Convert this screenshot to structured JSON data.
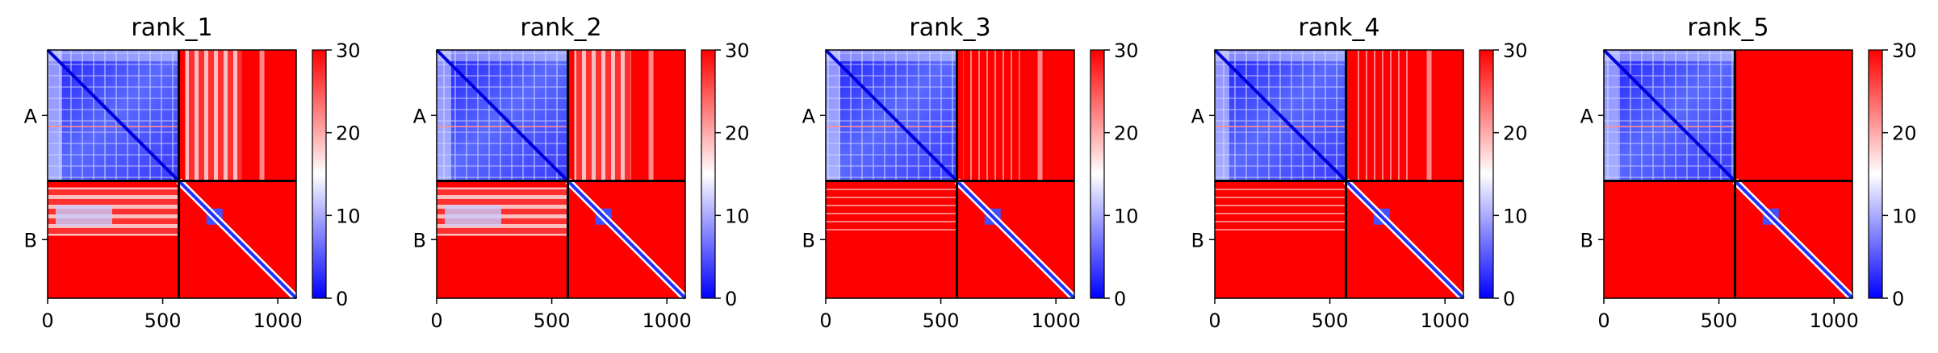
{
  "chart_data": [
    {
      "type": "heatmap",
      "title": "rank_1",
      "row_labels": [
        "A",
        "B"
      ],
      "x_ticks": [
        0,
        500,
        1000
      ],
      "x_range": [
        0,
        1080
      ],
      "chain_boundary": 570,
      "colorbar": {
        "range": [
          0,
          30
        ],
        "ticks": [
          0,
          10,
          20,
          30
        ],
        "colors": [
          "#0000ff",
          "#ffffff",
          "#ff0000"
        ]
      },
      "blocks": {
        "AA": "blue-mid",
        "AB": "red-whitish",
        "BA": "red-whitish",
        "BB": "red-diag"
      }
    },
    {
      "type": "heatmap",
      "title": "rank_2",
      "row_labels": [
        "A",
        "B"
      ],
      "x_ticks": [
        0,
        500,
        1000
      ],
      "x_range": [
        0,
        1080
      ],
      "chain_boundary": 570,
      "colorbar": {
        "range": [
          0,
          30
        ],
        "ticks": [
          0,
          10,
          20,
          30
        ],
        "colors": [
          "#0000ff",
          "#ffffff",
          "#ff0000"
        ]
      },
      "blocks": {
        "AA": "blue-mid",
        "AB": "red-whitish",
        "BA": "red-whitish",
        "BB": "red-diag"
      }
    },
    {
      "type": "heatmap",
      "title": "rank_3",
      "row_labels": [
        "A",
        "B"
      ],
      "x_ticks": [
        0,
        500,
        1000
      ],
      "x_range": [
        0,
        1080
      ],
      "chain_boundary": 570,
      "colorbar": {
        "range": [
          0,
          30
        ],
        "ticks": [
          0,
          10,
          20,
          30
        ],
        "colors": [
          "#0000ff",
          "#ffffff",
          "#ff0000"
        ]
      },
      "blocks": {
        "AA": "blue-mid",
        "AB": "red-striped",
        "BA": "red-striped",
        "BB": "red-diag"
      }
    },
    {
      "type": "heatmap",
      "title": "rank_4",
      "row_labels": [
        "A",
        "B"
      ],
      "x_ticks": [
        0,
        500,
        1000
      ],
      "x_range": [
        0,
        1080
      ],
      "chain_boundary": 570,
      "colorbar": {
        "range": [
          0,
          30
        ],
        "ticks": [
          0,
          10,
          20,
          30
        ],
        "colors": [
          "#0000ff",
          "#ffffff",
          "#ff0000"
        ]
      },
      "blocks": {
        "AA": "blue-mid",
        "AB": "red-striped",
        "BA": "red-striped",
        "BB": "red-diag"
      }
    },
    {
      "type": "heatmap",
      "title": "rank_5",
      "row_labels": [
        "A",
        "B"
      ],
      "x_ticks": [
        0,
        500,
        1000
      ],
      "x_range": [
        0,
        1080
      ],
      "chain_boundary": 570,
      "colorbar": {
        "range": [
          0,
          30
        ],
        "ticks": [
          0,
          10,
          20,
          30
        ],
        "colors": [
          "#0000ff",
          "#ffffff",
          "#ff0000"
        ]
      },
      "blocks": {
        "AA": "blue-mid",
        "AB": "red-solid",
        "BA": "red-solid",
        "BB": "red-diag"
      }
    }
  ]
}
